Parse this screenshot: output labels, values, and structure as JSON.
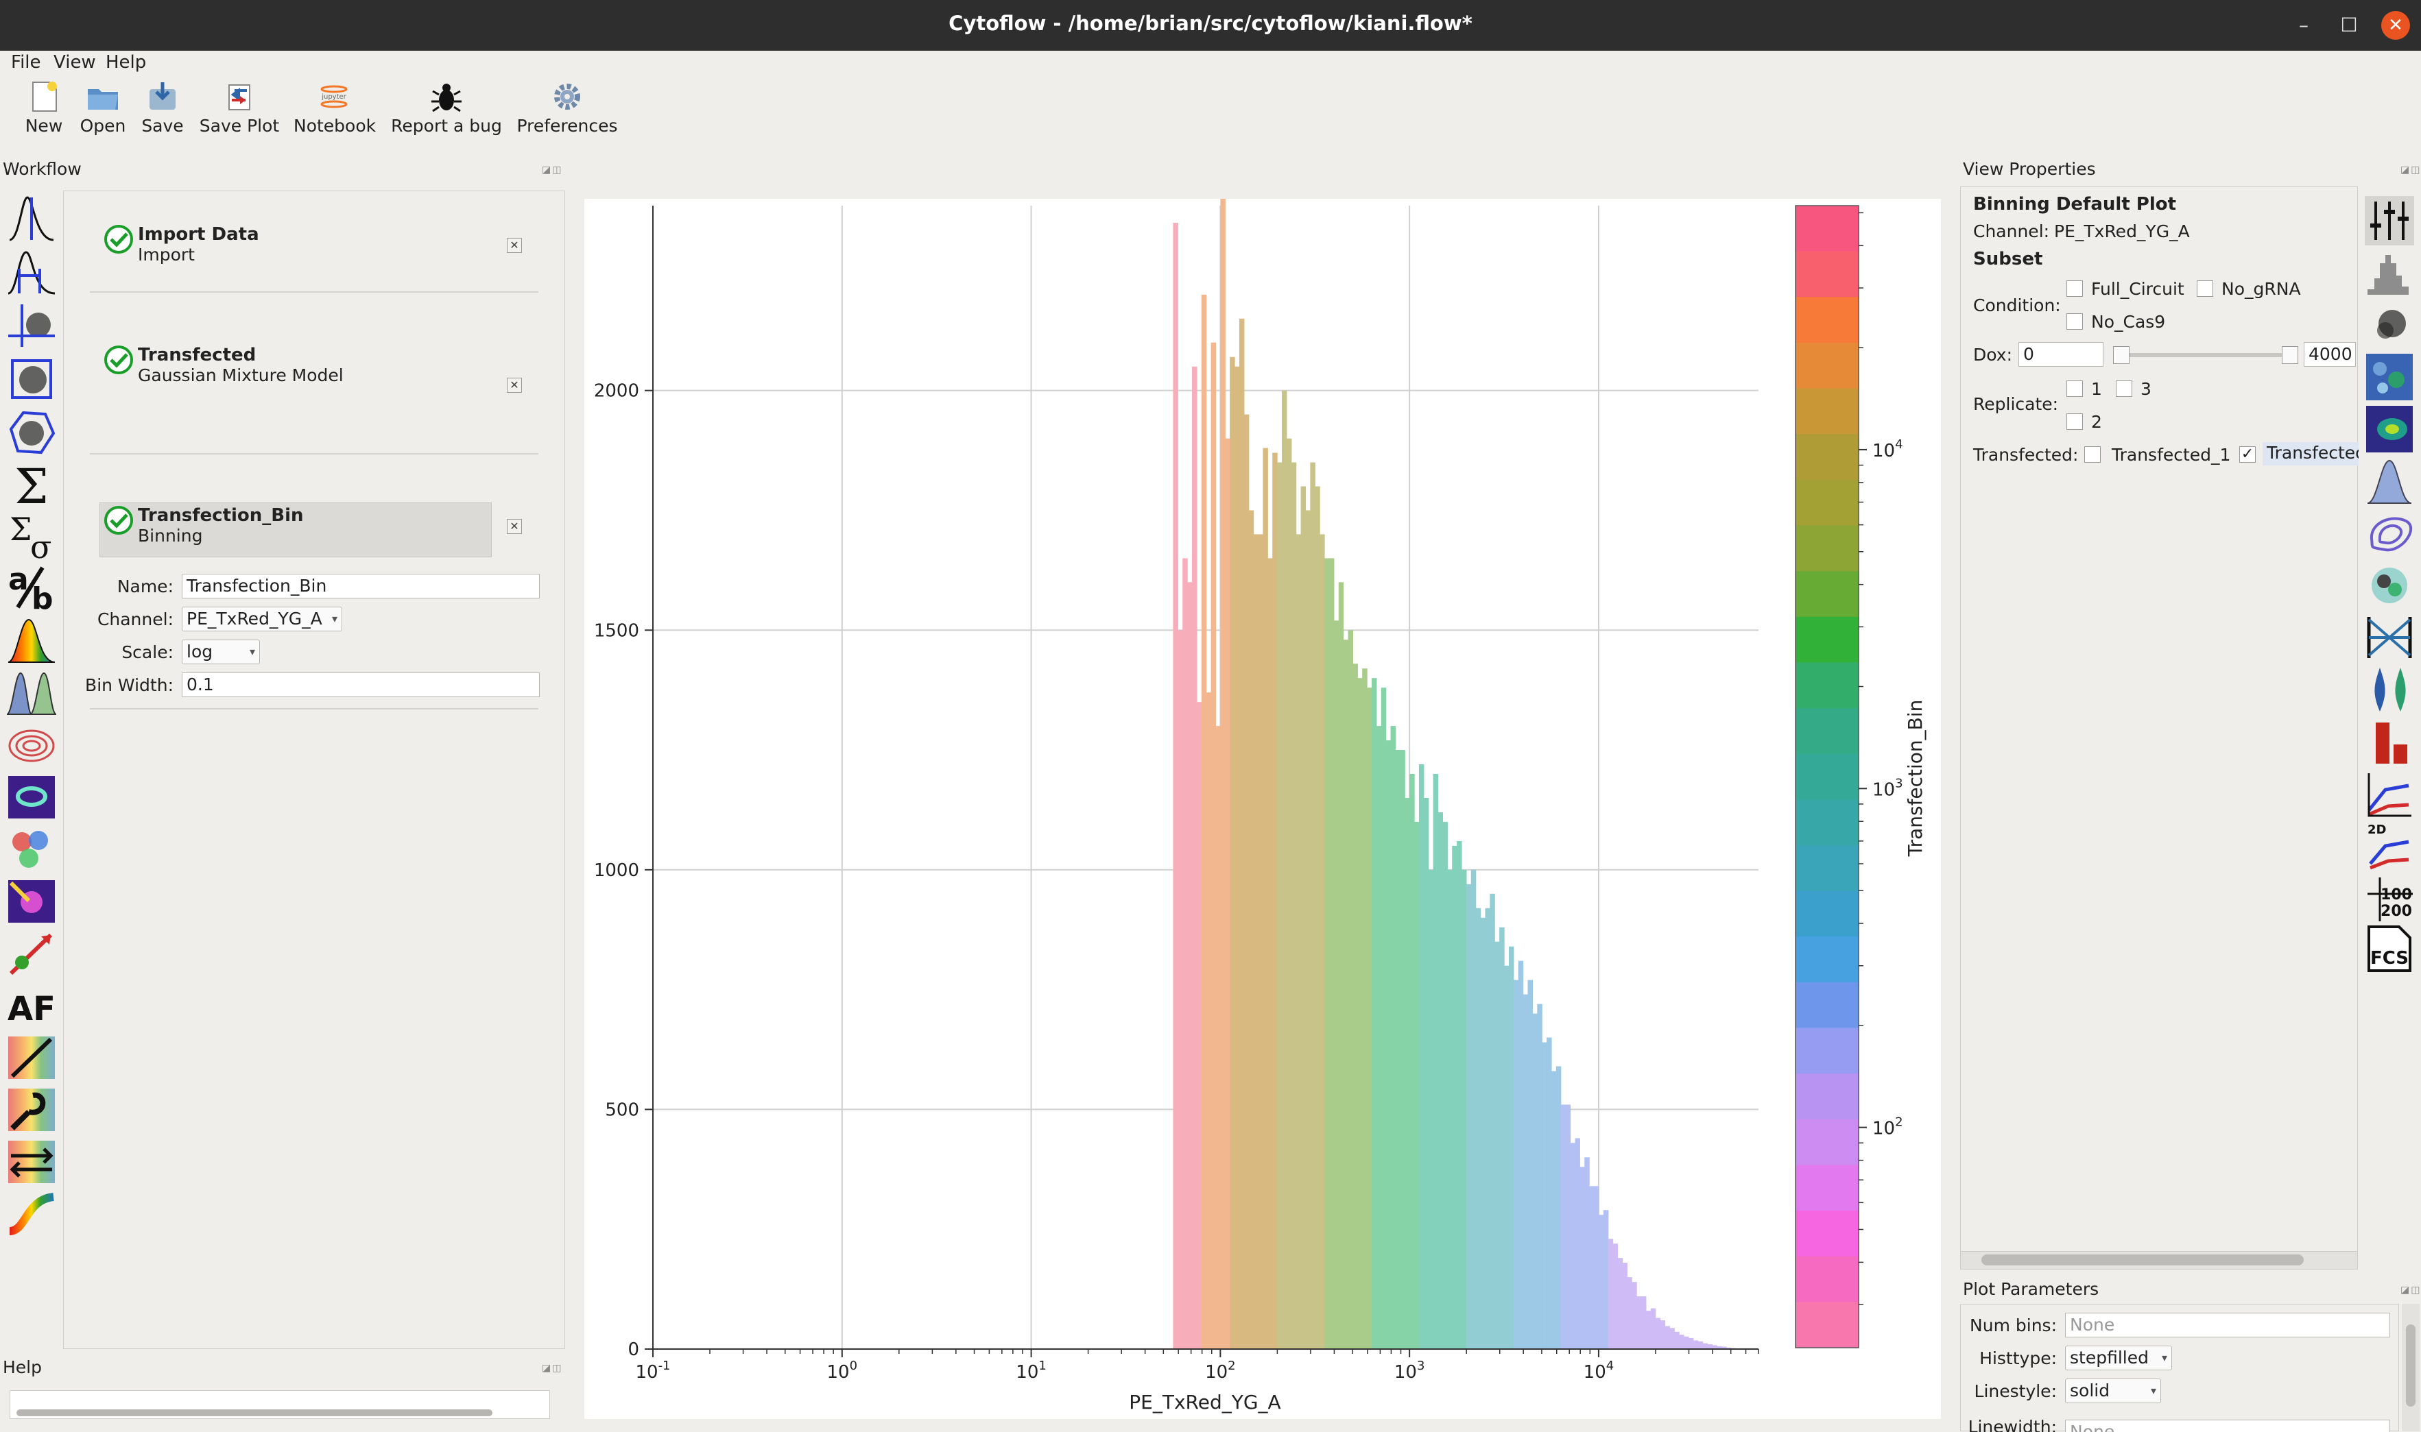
{
  "window": {
    "title": "Cytoflow - /home/brian/src/cytoflow/kiani.flow*",
    "minimize": "–",
    "maximize": "☐",
    "close": "✕"
  },
  "menu": {
    "file": "File",
    "view": "View",
    "help": "Help"
  },
  "toolbar": {
    "new": "New",
    "open": "Open",
    "save": "Save",
    "save_plot": "Save Plot",
    "notebook": "Notebook",
    "notebook_logo": "jupyter",
    "report_bug": "Report a bug",
    "preferences": "Preferences"
  },
  "workflow": {
    "title": "Workflow",
    "items": [
      {
        "title": "Import Data",
        "subtitle": "Import"
      },
      {
        "title": "Transfected",
        "subtitle": "Gaussian Mixture Model"
      },
      {
        "title": "Transfection_Bin",
        "subtitle": "Binning"
      }
    ],
    "form": {
      "name_label": "Name:",
      "name_value": "Transfection_Bin",
      "channel_label": "Channel:",
      "channel_value": "PE_TxRed_YG_A",
      "scale_label": "Scale:",
      "scale_value": "log",
      "binwidth_label": "Bin Width:",
      "binwidth_value": "0.1"
    }
  },
  "help_panel": {
    "title": "Help"
  },
  "view_properties": {
    "title": "View Properties",
    "plot_name": "Binning Default Plot",
    "channel_label": "Channel:",
    "channel_value": "PE_TxRed_YG_A",
    "subset_label": "Subset",
    "condition_label": "Condition:",
    "conditions": [
      "Full_Circuit",
      "No_gRNA",
      "No_Cas9"
    ],
    "dox_label": "Dox:",
    "dox_min": "0",
    "dox_max": "4000",
    "replicate_label": "Replicate:",
    "replicates": [
      "1",
      "3",
      "2"
    ],
    "transfected_label": "Transfected:",
    "transfected": [
      {
        "label": "Transfected_1",
        "checked": false
      },
      {
        "label": "Transfected",
        "checked": true
      }
    ],
    "check_mark": "✓"
  },
  "plot_parameters": {
    "title": "Plot Parameters",
    "numbins_label": "Num bins:",
    "numbins_placeholder": "None",
    "histtype_label": "Histtype:",
    "histtype_value": "stepfilled",
    "linestyle_label": "Linestyle:",
    "linestyle_value": "solid",
    "linewidth_label": "Linewidth:",
    "linewidth_placeholder": "None"
  },
  "chart_data": {
    "type": "bar",
    "xlabel": "PE_TxRed_YG_A",
    "colorbar_label": "Transfection_Bin",
    "xscale": "log",
    "xlim": [
      0.1,
      70000
    ],
    "ylim": [
      0,
      2400
    ],
    "x_ticks": [
      "10^-1",
      "10^0",
      "10^1",
      "10^2",
      "10^3",
      "10^4"
    ],
    "y_ticks": [
      0,
      500,
      1000,
      1500,
      2000
    ],
    "colorbar_ticks": [
      "10^2",
      "10^3",
      "10^4"
    ],
    "grid": true,
    "bins": {
      "log_start": 1.75,
      "log_width": 0.025
    },
    "values": [
      2350,
      1500,
      1650,
      1600,
      2050,
      1350,
      2200,
      1370,
      2100,
      1300,
      2400,
      1900,
      2070,
      2050,
      2150,
      1950,
      1750,
      1700,
      1700,
      1880,
      1650,
      1870,
      1850,
      2000,
      1900,
      1850,
      1700,
      1800,
      1750,
      1850,
      1800,
      1700,
      1650,
      1650,
      1520,
      1600,
      1480,
      1500,
      1430,
      1400,
      1420,
      1380,
      1400,
      1300,
      1380,
      1270,
      1300,
      1250,
      1250,
      1150,
      1200,
      1100,
      1220,
      1150,
      1000,
      1200,
      1120,
      1100,
      1000,
      1050,
      1060,
      1000,
      970,
      1000,
      920,
      900,
      920,
      950,
      850,
      880,
      800,
      840,
      770,
      810,
      740,
      770,
      700,
      720,
      640,
      650,
      580,
      590,
      510,
      510,
      430,
      440,
      380,
      400,
      340,
      340,
      280,
      290,
      230,
      220,
      190,
      180,
      150,
      140,
      110,
      110,
      80,
      85,
      65,
      60,
      48,
      44,
      36,
      30,
      26,
      23,
      18,
      16,
      12,
      10,
      8,
      6,
      5,
      3,
      2,
      1
    ],
    "bin_colors": [
      {
        "from": 1.75,
        "to": 1.9,
        "color": "#f7aeba"
      },
      {
        "from": 1.9,
        "to": 2.05,
        "color": "#f3b78f"
      },
      {
        "from": 2.05,
        "to": 2.3,
        "color": "#d8ba80"
      },
      {
        "from": 2.3,
        "to": 2.55,
        "color": "#c8c489"
      },
      {
        "from": 2.55,
        "to": 2.8,
        "color": "#a9cc8a"
      },
      {
        "from": 2.8,
        "to": 3.05,
        "color": "#85d3a7"
      },
      {
        "from": 3.05,
        "to": 3.3,
        "color": "#83d1bb"
      },
      {
        "from": 3.3,
        "to": 3.55,
        "color": "#92cdd3"
      },
      {
        "from": 3.55,
        "to": 3.8,
        "color": "#9dc8e6"
      },
      {
        "from": 3.8,
        "to": 4.05,
        "color": "#b2c0f4"
      },
      {
        "from": 4.05,
        "to": 4.5,
        "color": "#cfbcf6"
      }
    ],
    "colorbar_colors": [
      "#f7577e",
      "#f8606e",
      "#f87a38",
      "#e68a37",
      "#c99736",
      "#b09c36",
      "#a3a034",
      "#8ca534",
      "#67ab34",
      "#31b137",
      "#33ae6a",
      "#34ab86",
      "#35a997",
      "#37a7a7",
      "#3aa5b9",
      "#3ba1cc",
      "#47a0e0",
      "#6e97ec",
      "#969cf1",
      "#b893f2",
      "#cc8cf2",
      "#e279ee",
      "#f566e0",
      "#f76ac2",
      "#f878ad"
    ],
    "colorbar_range": [
      1.35,
      4.72
    ]
  }
}
